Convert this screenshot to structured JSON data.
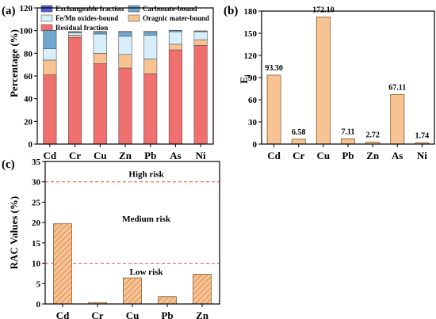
{
  "chart_data": [
    {
      "panel_label": "(a)",
      "type": "bar",
      "stacked": true,
      "categories": [
        "Cd",
        "Cr",
        "Cu",
        "Zn",
        "Pb",
        "As",
        "Ni"
      ],
      "ylabel": "Percentage (%)",
      "ylim": [
        0,
        120
      ],
      "yticks": [
        0,
        20,
        40,
        60,
        80,
        100,
        120
      ],
      "series": [
        {
          "name": "Residual fraction",
          "color": "#f07070",
          "values": [
            61,
            94,
            71,
            67,
            62,
            83,
            87
          ]
        },
        {
          "name": "Oragnic mater-bound",
          "color": "#f7c393",
          "values": [
            13,
            2,
            9,
            12,
            13,
            5,
            5
          ]
        },
        {
          "name": "Fe/Mn oxides-bound",
          "color": "#d6effa",
          "values": [
            10,
            2,
            17,
            16,
            21,
            11,
            7
          ]
        },
        {
          "name": "Carbonate-bound",
          "color": "#6fa7cf",
          "values": [
            16,
            1,
            2,
            4,
            3,
            1,
            0.5
          ]
        },
        {
          "name": "Exchangeable fraction",
          "color": "#5a5cdc",
          "values": [
            0.3,
            0.2,
            0.3,
            0.3,
            0.3,
            0.3,
            0.3
          ]
        }
      ],
      "legend_order": [
        "Exchangeable fraction",
        "Carbonate-bound",
        "Fe/Mn oxides-bound",
        "Oragnic mater-bound",
        "Residual fraction"
      ]
    },
    {
      "panel_label": "(b)",
      "type": "bar",
      "categories": [
        "Cd",
        "Cr",
        "Cu",
        "Pb",
        "Zn",
        "As",
        "Ni"
      ],
      "values": [
        93.3,
        6.58,
        172.1,
        7.11,
        2.72,
        67.11,
        1.74
      ],
      "value_labels": [
        "93.30",
        "6.58",
        "172.10",
        "7.11",
        "2.72",
        "67.11",
        "1.74"
      ],
      "ylabel": "E",
      "ylabel_sub": "i",
      "ylim": [
        0,
        180
      ],
      "yticks": [
        0,
        30,
        60,
        90,
        120,
        150,
        180
      ],
      "color": "#f7c393"
    },
    {
      "panel_label": "(c)",
      "type": "bar",
      "categories": [
        "Cd",
        "Cr",
        "Cu",
        "Pb",
        "Zn"
      ],
      "values": [
        19.7,
        0.3,
        6.4,
        1.8,
        7.3
      ],
      "ylabel": "RAC Values (%)",
      "ylim": [
        0,
        35
      ],
      "yticks": [
        0,
        5,
        10,
        15,
        20,
        25,
        30,
        35
      ],
      "hatch": true,
      "color": "#f7c393",
      "thresholds": [
        10,
        30
      ],
      "threshold_color": "#e74c3c",
      "annotations": [
        {
          "text": "High risk",
          "y": 32
        },
        {
          "text": "Medium risk",
          "y": 21
        },
        {
          "text": "Low risk",
          "y": 8
        }
      ]
    }
  ]
}
